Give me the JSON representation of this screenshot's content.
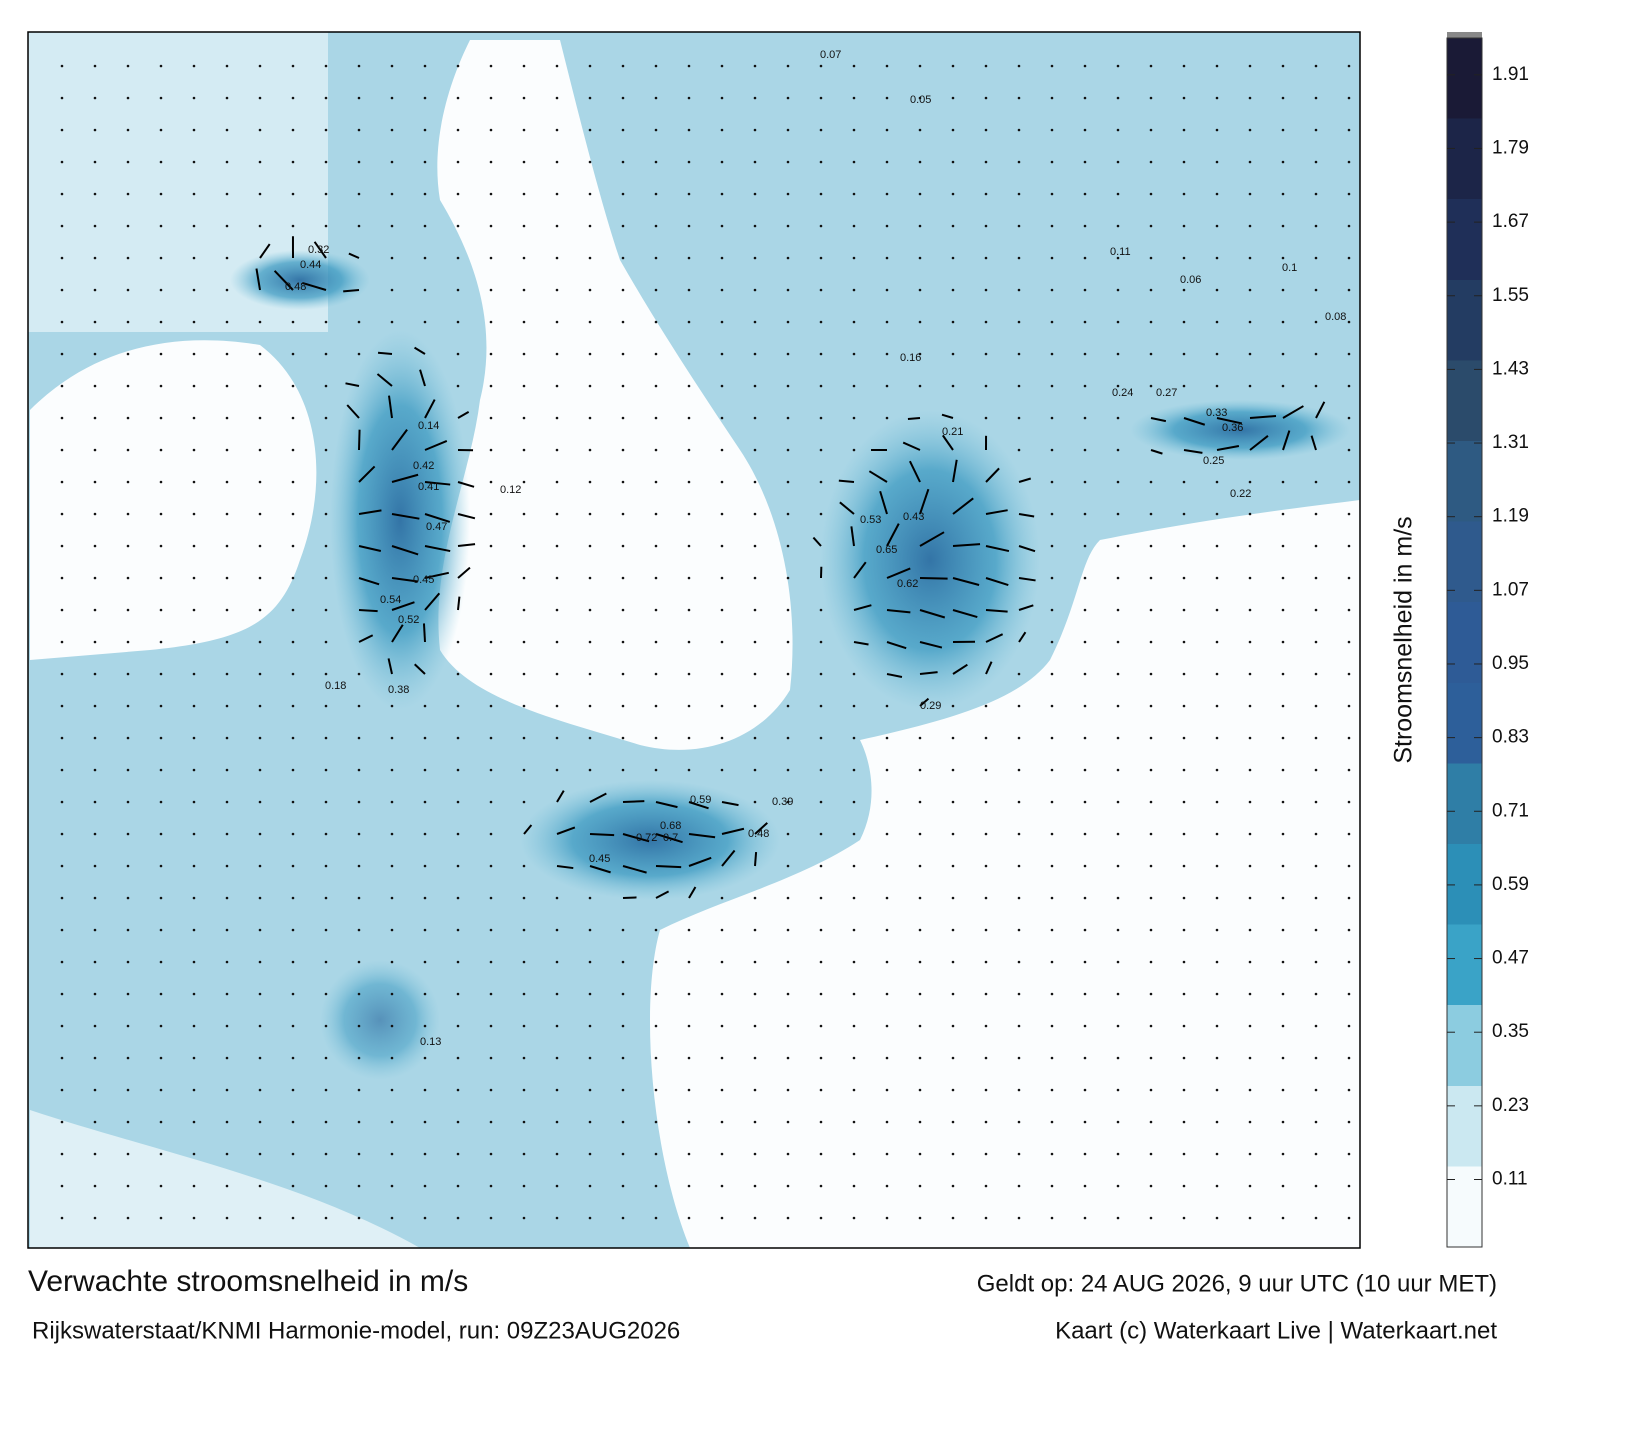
{
  "title": "Verwachte stroomsnelheid in m/s",
  "subtitle": "Rijkswaterstaat/KNMI Harmonie-model, run: 09Z23AUG2026",
  "valid_time": "Geldt op: 24 AUG 2026, 9 uur UTC (10 uur MET)",
  "credit": "Kaart (c) Waterkaart Live | Waterkaart.net",
  "colorbar": {
    "label": "Stroomsnelheid in m/s",
    "ylim": [
      0,
      1.97
    ],
    "yticks": [
      0.11,
      0.23,
      0.35,
      0.47,
      0.59,
      0.71,
      0.83,
      0.95,
      1.07,
      1.19,
      1.31,
      1.43,
      1.55,
      1.67,
      1.79,
      1.91
    ],
    "colors": [
      "#f6fbfd",
      "#cbe8f1",
      "#8ccce0",
      "#3aa3c7",
      "#2c8fb7",
      "#2f7ea6",
      "#2d5f9a",
      "#2e5b96",
      "#2f5a8d",
      "#2e5a82",
      "#2b4b6b",
      "#233c62",
      "#1f2f58",
      "#1c2548",
      "#1a1a36"
    ]
  },
  "speed_labels": [
    0.44,
    0.48,
    0.32,
    0.41,
    0.52,
    0.47,
    0.54,
    0.45,
    0.38,
    0.42,
    0.21,
    0.24,
    0.27,
    0.33,
    0.36,
    0.43,
    0.53,
    0.65,
    0.62,
    0.59,
    0.7,
    0.68,
    0.72,
    0.48,
    0.45,
    0.39,
    0.29,
    0.14,
    0.13,
    0.18,
    0.16,
    0.11,
    0.07,
    0.05,
    0.12,
    0.22,
    0.25,
    0.08,
    0.1,
    0.06
  ]
}
